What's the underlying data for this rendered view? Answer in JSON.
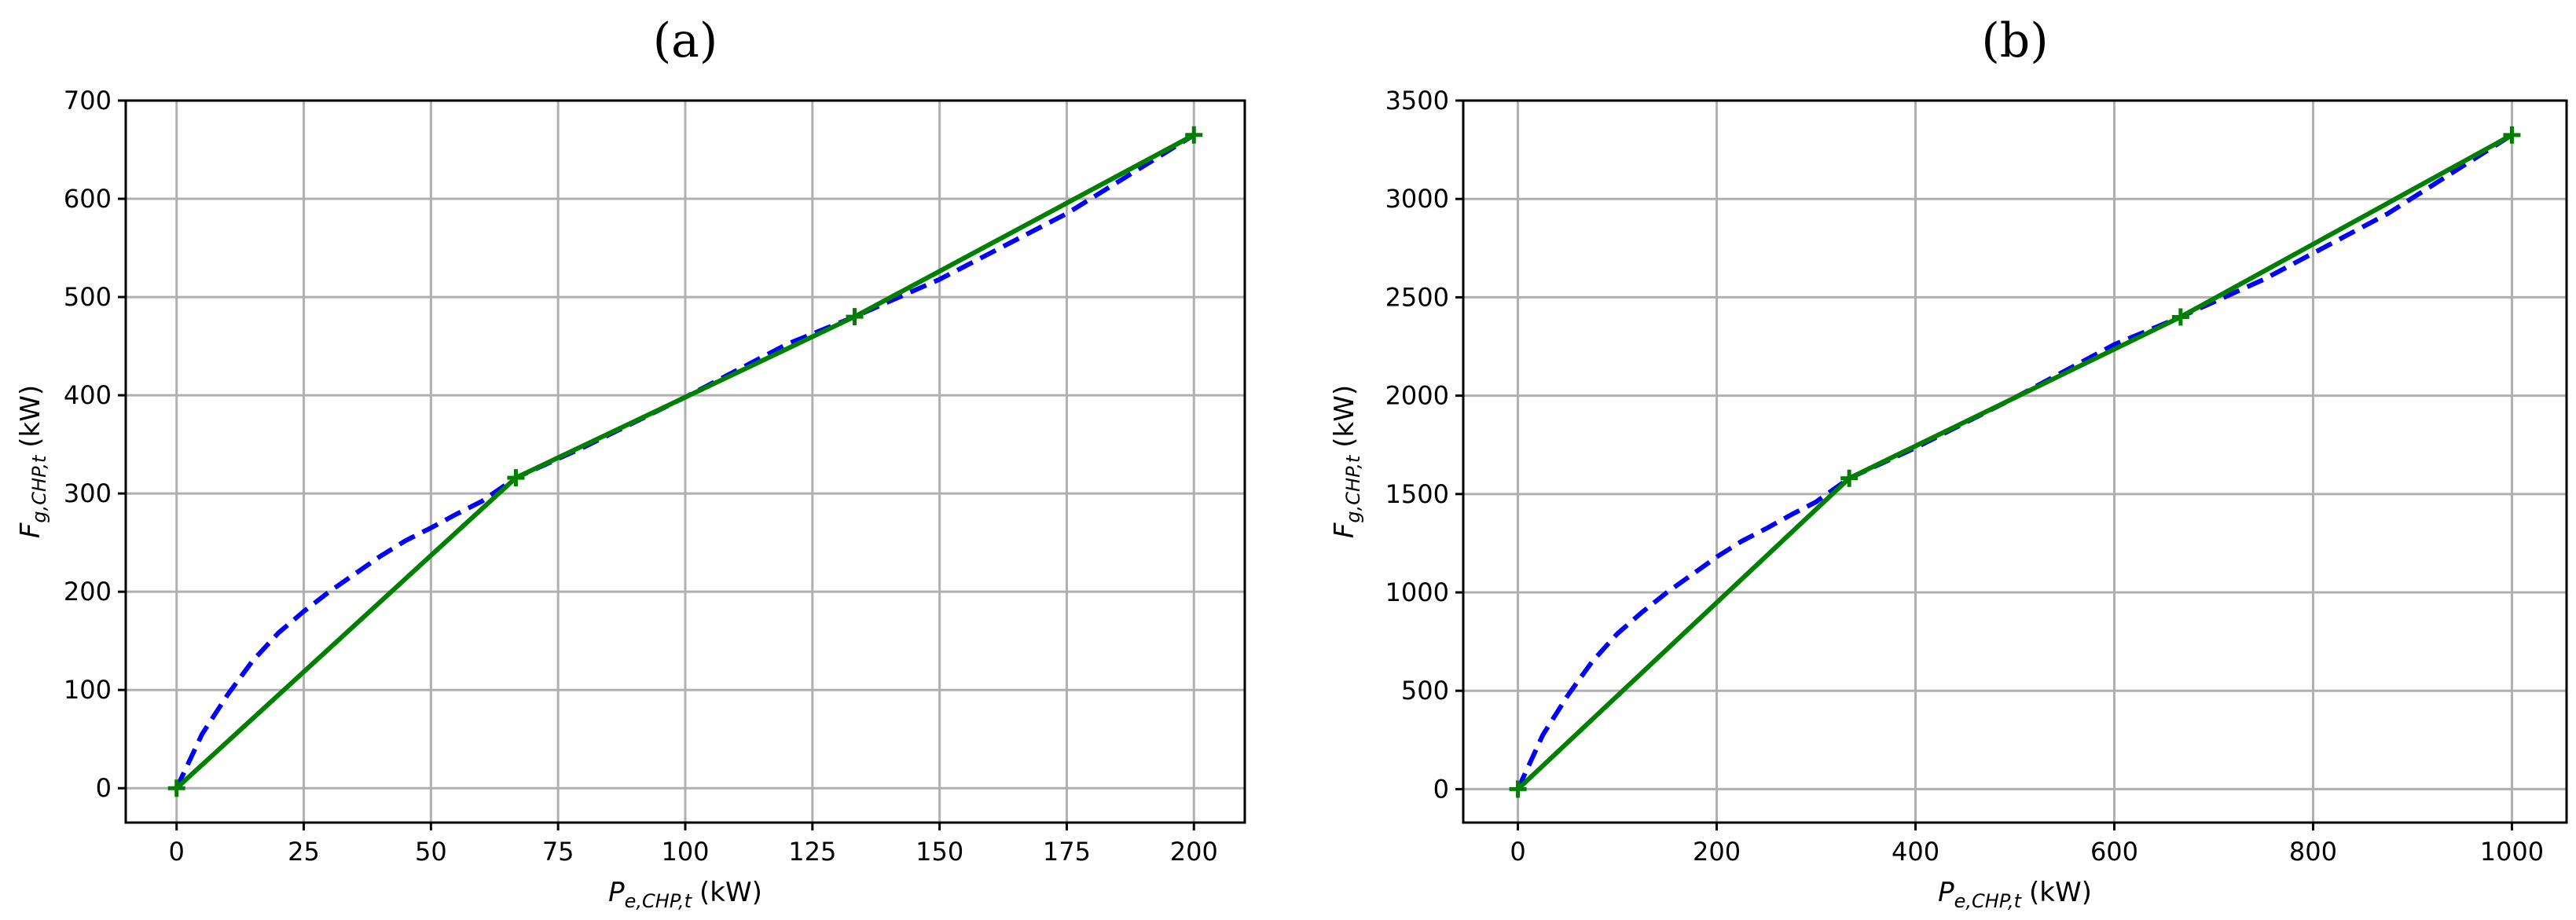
{
  "chart_data": [
    {
      "panel": "(a)",
      "type": "line",
      "title": "(a)",
      "xlabel": {
        "main": "P",
        "sub": "e,CHP,t",
        "unit": "(kW)"
      },
      "ylabel": {
        "main": "F",
        "sub": "g,CHP,t",
        "unit": "(kW)"
      },
      "xlim": [
        -10,
        210
      ],
      "ylim": [
        -35,
        700
      ],
      "xticks": [
        0,
        25,
        50,
        75,
        100,
        125,
        150,
        175,
        200
      ],
      "yticks": [
        0,
        100,
        200,
        300,
        400,
        500,
        600,
        700
      ],
      "grid": true,
      "series": [
        {
          "style": "dashed",
          "color": "#0000ff",
          "x": [
            0,
            5,
            10,
            15,
            20,
            25,
            30,
            35,
            40,
            45,
            50,
            55,
            60,
            66.7,
            80,
            100,
            120,
            133.3,
            150,
            175,
            200
          ],
          "y": [
            0,
            55,
            95,
            130,
            158,
            180,
            200,
            218,
            236,
            252,
            265,
            279,
            292,
            316,
            347,
            398,
            452,
            480,
            518,
            585,
            665
          ]
        },
        {
          "style": "solid",
          "color": "#008000",
          "marker": "+",
          "x": [
            0,
            66.7,
            133.3,
            200
          ],
          "y": [
            0,
            316,
            480,
            665
          ]
        }
      ]
    },
    {
      "panel": "(b)",
      "type": "line",
      "title": "(b)",
      "xlabel": {
        "main": "P",
        "sub": "e,CHP,t",
        "unit": "(kW)"
      },
      "ylabel": {
        "main": "F",
        "sub": "g,CHP,t",
        "unit": "(kW)"
      },
      "xlim": [
        -55,
        1055
      ],
      "ylim": [
        -170,
        3500
      ],
      "xticks": [
        0,
        200,
        400,
        600,
        800,
        1000
      ],
      "yticks": [
        0,
        500,
        1000,
        1500,
        2000,
        2500,
        3000,
        3500
      ],
      "grid": true,
      "series": [
        {
          "style": "dashed",
          "color": "#0000ff",
          "x": [
            0,
            25,
            50,
            75,
            100,
            125,
            150,
            175,
            200,
            225,
            250,
            275,
            300,
            333.3,
            400,
            500,
            600,
            666.7,
            750,
            875,
            1000
          ],
          "y": [
            0,
            275,
            475,
            650,
            790,
            900,
            1000,
            1090,
            1180,
            1260,
            1325,
            1395,
            1460,
            1580,
            1735,
            1990,
            2260,
            2400,
            2590,
            2925,
            3325
          ]
        },
        {
          "style": "solid",
          "color": "#008000",
          "marker": "+",
          "x": [
            0,
            333.3,
            666.7,
            1000
          ],
          "y": [
            0,
            1580,
            2400,
            3325
          ]
        }
      ]
    }
  ]
}
